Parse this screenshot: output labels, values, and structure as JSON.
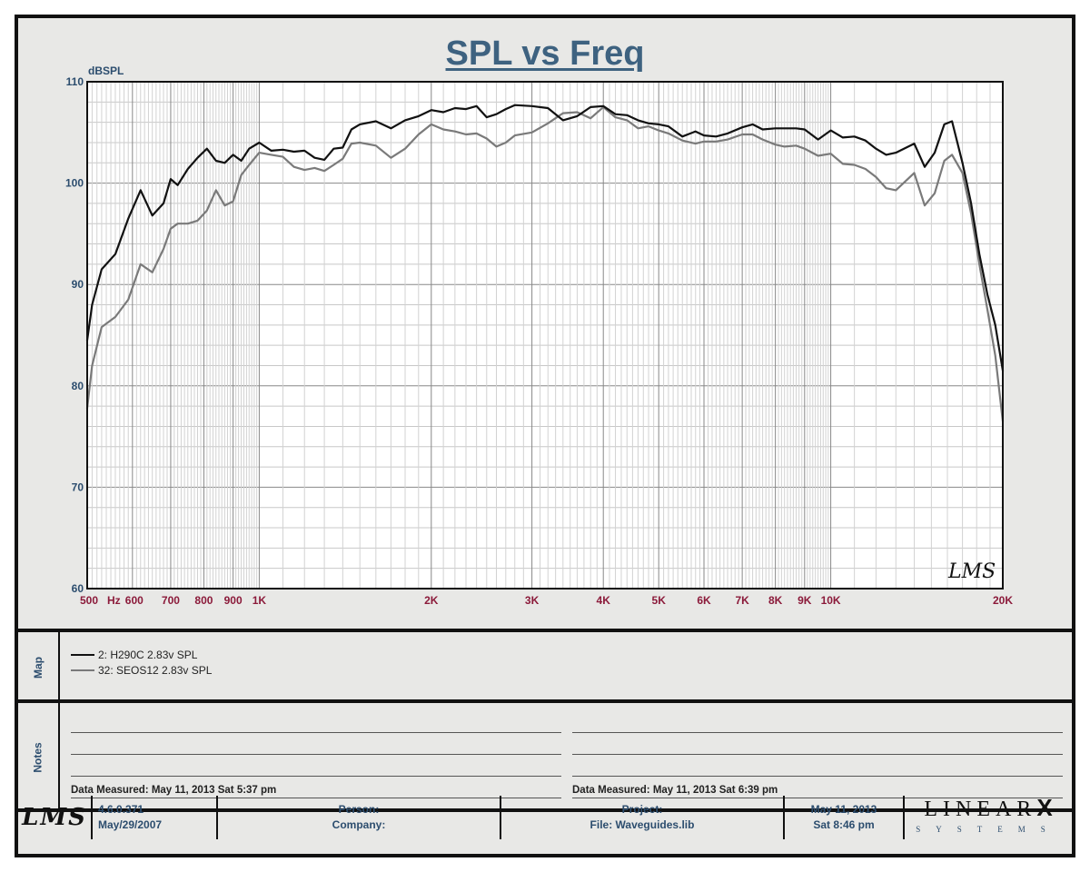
{
  "title": "SPL vs Freq",
  "chart_data": {
    "type": "line",
    "title": "SPL vs Freq",
    "ylabel": "dBSPL",
    "xlabel": "Hz",
    "xscale": "log",
    "xlim": [
      500,
      20000
    ],
    "ylim": [
      60,
      110
    ],
    "grid": true,
    "legend": "bottom panel (Map)",
    "y_ticks": [
      {
        "value": 110,
        "label": "110"
      },
      {
        "value": 100,
        "label": "100"
      },
      {
        "value": 90,
        "label": "90"
      },
      {
        "value": 80,
        "label": "80"
      },
      {
        "value": 70,
        "label": "70"
      },
      {
        "value": 60,
        "label": "60"
      }
    ],
    "x_ticks": [
      {
        "value": 500,
        "label": "500"
      },
      {
        "value": 600,
        "label": "600"
      },
      {
        "value": 700,
        "label": "700"
      },
      {
        "value": 800,
        "label": "800"
      },
      {
        "value": 900,
        "label": "900"
      },
      {
        "value": 1000,
        "label": "1K"
      },
      {
        "value": 2000,
        "label": "2K"
      },
      {
        "value": 3000,
        "label": "3K"
      },
      {
        "value": 4000,
        "label": "4K"
      },
      {
        "value": 5000,
        "label": "5K"
      },
      {
        "value": 6000,
        "label": "6K"
      },
      {
        "value": 7000,
        "label": "7K"
      },
      {
        "value": 8000,
        "label": "8K"
      },
      {
        "value": 9000,
        "label": "9K"
      },
      {
        "value": 10000,
        "label": "10K"
      },
      {
        "value": 20000,
        "label": "20K"
      }
    ],
    "series": [
      {
        "name": "2: H290C 2.83v SPL",
        "color": "#111111",
        "x": [
          500,
          510,
          530,
          560,
          590,
          620,
          650,
          680,
          700,
          720,
          750,
          780,
          810,
          840,
          870,
          900,
          930,
          960,
          1000,
          1050,
          1100,
          1150,
          1200,
          1250,
          1300,
          1350,
          1400,
          1450,
          1500,
          1600,
          1700,
          1800,
          1900,
          2000,
          2100,
          2200,
          2300,
          2400,
          2500,
          2600,
          2700,
          2800,
          3000,
          3200,
          3400,
          3600,
          3800,
          4000,
          4200,
          4400,
          4600,
          4800,
          5000,
          5200,
          5500,
          5800,
          6000,
          6300,
          6600,
          7000,
          7300,
          7600,
          8000,
          8300,
          8700,
          9000,
          9500,
          10000,
          10500,
          11000,
          11500,
          12000,
          12500,
          13000,
          14000,
          14600,
          15200,
          15800,
          16300,
          17000,
          17600,
          18200,
          18800,
          19400,
          20000
        ],
        "y": [
          84.5,
          88.0,
          91.5,
          93.0,
          96.5,
          99.3,
          96.8,
          98.0,
          100.4,
          99.8,
          101.4,
          102.5,
          103.4,
          102.2,
          102.0,
          102.8,
          102.2,
          103.4,
          104.0,
          103.2,
          103.3,
          103.1,
          103.2,
          102.5,
          102.3,
          103.4,
          103.5,
          105.3,
          105.8,
          106.1,
          105.4,
          106.2,
          106.6,
          107.2,
          107.0,
          107.4,
          107.3,
          107.6,
          106.5,
          106.8,
          107.3,
          107.7,
          107.6,
          107.4,
          106.2,
          106.6,
          107.5,
          107.6,
          106.8,
          106.7,
          106.2,
          105.9,
          105.8,
          105.6,
          104.6,
          105.1,
          104.7,
          104.6,
          104.9,
          105.5,
          105.8,
          105.3,
          105.4,
          105.4,
          105.4,
          105.3,
          104.3,
          105.2,
          104.5,
          104.6,
          104.2,
          103.4,
          102.8,
          103.0,
          103.9,
          101.6,
          103.0,
          105.8,
          106.1,
          102.0,
          98.0,
          93.0,
          89.0,
          86.0,
          81.5
        ]
      },
      {
        "name": "32: SEOS12 2.83v SPL",
        "color": "#7a7a7a",
        "x": [
          500,
          510,
          530,
          560,
          590,
          620,
          650,
          680,
          700,
          720,
          750,
          780,
          810,
          840,
          870,
          900,
          930,
          960,
          1000,
          1050,
          1100,
          1150,
          1200,
          1250,
          1300,
          1350,
          1400,
          1450,
          1500,
          1600,
          1700,
          1800,
          1900,
          2000,
          2100,
          2200,
          2300,
          2400,
          2500,
          2600,
          2700,
          2800,
          3000,
          3200,
          3400,
          3600,
          3800,
          4000,
          4200,
          4400,
          4600,
          4800,
          5000,
          5200,
          5500,
          5800,
          6000,
          6300,
          6600,
          7000,
          7300,
          7600,
          8000,
          8300,
          8700,
          9000,
          9500,
          10000,
          10500,
          11000,
          11500,
          12000,
          12500,
          13000,
          14000,
          14600,
          15200,
          15800,
          16300,
          17000,
          17600,
          18200,
          18800,
          19400,
          20000
        ],
        "y": [
          77.8,
          82.0,
          85.8,
          86.8,
          88.5,
          92.0,
          91.2,
          93.5,
          95.5,
          96.0,
          96.0,
          96.3,
          97.3,
          99.3,
          97.8,
          98.2,
          100.8,
          101.8,
          103.0,
          102.8,
          102.6,
          101.6,
          101.3,
          101.5,
          101.2,
          101.8,
          102.4,
          103.9,
          104.0,
          103.7,
          102.5,
          103.4,
          104.8,
          105.8,
          105.3,
          105.1,
          104.8,
          104.9,
          104.4,
          103.6,
          104.0,
          104.7,
          105.0,
          105.9,
          106.9,
          107.0,
          106.4,
          107.5,
          106.5,
          106.2,
          105.4,
          105.6,
          105.2,
          104.9,
          104.2,
          103.9,
          104.1,
          104.1,
          104.3,
          104.8,
          104.8,
          104.3,
          103.8,
          103.6,
          103.7,
          103.4,
          102.7,
          102.9,
          101.9,
          101.8,
          101.4,
          100.6,
          99.5,
          99.3,
          101.0,
          97.8,
          99.0,
          102.2,
          102.8,
          101.0,
          97.0,
          92.0,
          87.5,
          83.0,
          76.5
        ]
      }
    ]
  },
  "map_panel": {
    "label": "Map",
    "entries": [
      {
        "text": "2: H290C 2.83v SPL",
        "color": "#111111"
      },
      {
        "text": "32: SEOS12 2.83v SPL",
        "color": "#7a7a7a"
      }
    ]
  },
  "notes_panel": {
    "label": "Notes",
    "left_measured": "Data Measured: May 11, 2013  Sat  5:37 pm",
    "right_measured": "Data Measured: May 11, 2013  Sat  6:39 pm"
  },
  "watermark": "LMS",
  "footer": {
    "logo": "LMS",
    "version": "4.6.0.371",
    "version_date": "May/29/2007",
    "person_label": "Person:",
    "company_label": "Company:",
    "project_label": "Project:",
    "file_label": "File: Waveguides.lib",
    "date": "May 11, 2013",
    "time": "Sat  8:46 pm",
    "brand_top": "LINEAR",
    "brand_x": "X",
    "brand_bottom": "SYSTEMS"
  }
}
